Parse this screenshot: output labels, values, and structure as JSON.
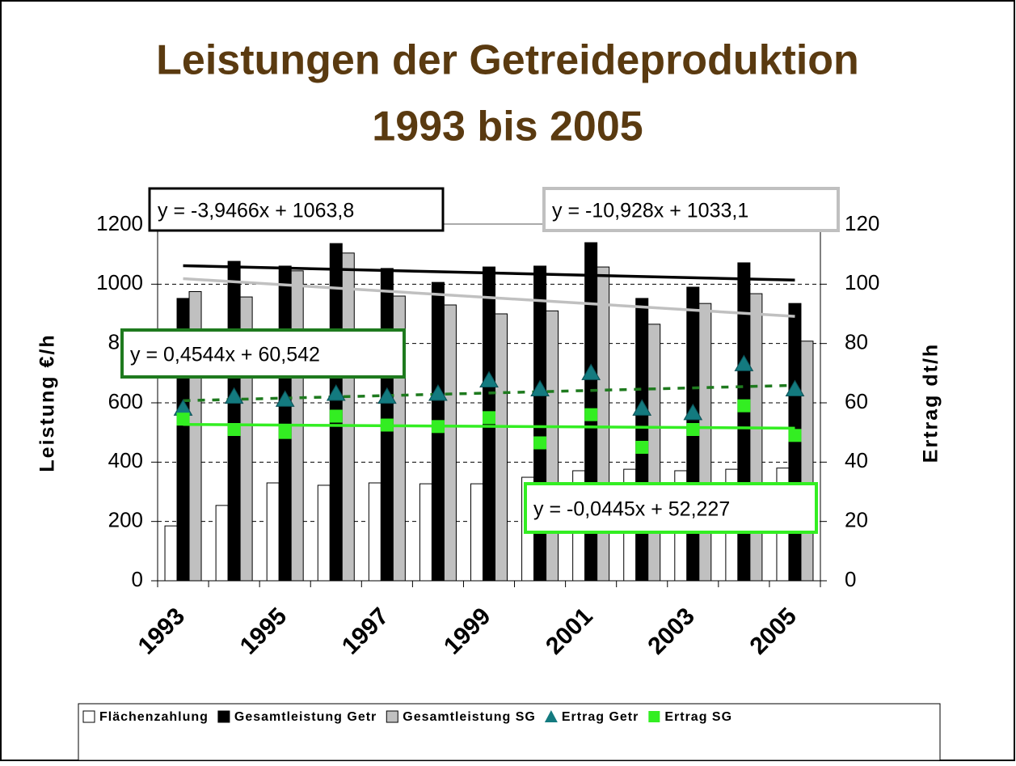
{
  "chart_data": {
    "type": "bar",
    "title": [
      "Leistungen der Getreideproduktion",
      "1993 bis 2005"
    ],
    "y_label": "Leistung €/h",
    "y2_label": "Ertrag dt/h",
    "categories": [
      "1993",
      null,
      "1995",
      null,
      "1997",
      null,
      "1999",
      null,
      "2001",
      null,
      "2003",
      null,
      "2005"
    ],
    "ylim": [
      0,
      1200
    ],
    "yticks": [
      0,
      200,
      400,
      600,
      800,
      1000,
      1200
    ],
    "y2lim": [
      0,
      120
    ],
    "y2ticks": [
      0,
      20,
      40,
      60,
      80,
      100,
      120
    ],
    "grid": true,
    "legend": "bottom",
    "series": [
      {
        "name": "Flächenzahlung",
        "type": "bar",
        "color": "#ffffff",
        "values": [
          185,
          254,
          330,
          322,
          330,
          327,
          327,
          349,
          371,
          376,
          371,
          376,
          380
        ]
      },
      {
        "name": "Gesamtleistung Getr",
        "type": "bar",
        "color": "#000000",
        "values": [
          952,
          1077,
          1061,
          1137,
          1053,
          1006,
          1058,
          1061,
          1140,
          952,
          990,
          1072,
          935
        ]
      },
      {
        "name": "Gesamtleistung SG",
        "type": "bar",
        "color": "#c0c0c0",
        "values": [
          975,
          957,
          1045,
          1105,
          960,
          930,
          900,
          910,
          1058,
          865,
          935,
          968,
          808
        ]
      },
      {
        "name": "Ertrag Getr",
        "type": "marker",
        "marker": "triangle",
        "axis": "y2",
        "color": "#137a7f",
        "values": [
          58,
          62,
          61,
          63,
          62,
          63,
          67.5,
          64.5,
          70,
          58,
          56.5,
          73,
          64.5
        ]
      },
      {
        "name": "Ertrag SG",
        "type": "marker",
        "marker": "square",
        "axis": "y2",
        "color": "#33ee22",
        "values": [
          54.5,
          51,
          50,
          55.5,
          52.5,
          52,
          55,
          46.5,
          56,
          45,
          51,
          59,
          49
        ]
      }
    ],
    "trendlines": [
      {
        "series": 1,
        "label": "y = -3,9466x + 1063,8",
        "color": "#000000",
        "dash": false
      },
      {
        "series": 2,
        "label": "y = -10,928x + 1033,1",
        "color": "#c0c0c0",
        "dash": false
      },
      {
        "series": 3,
        "label": "y = 0,4544x + 60,542",
        "color": "#1e7a1e",
        "dash": true
      },
      {
        "series": 4,
        "label": "y = -0,0445x + 52,227",
        "color": "#33ee22",
        "dash": false
      }
    ]
  }
}
